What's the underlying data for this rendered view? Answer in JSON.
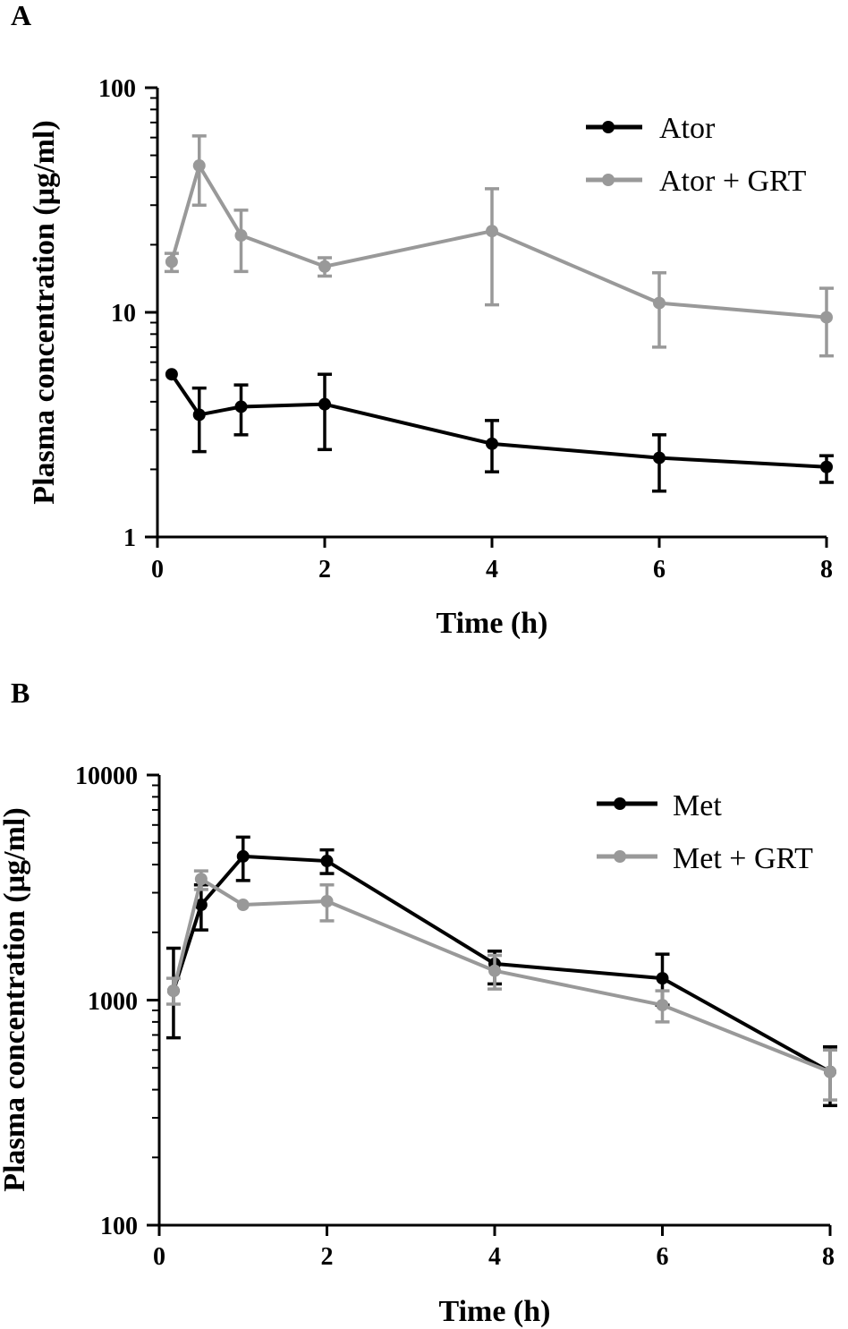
{
  "chart_data": [
    {
      "type": "line",
      "panel_label": "A",
      "xlabel": "Time (h)",
      "ylabel": "Plasma concentration (µg/ml)",
      "yscale": "log",
      "xlim": [
        0,
        8
      ],
      "ylim": [
        1,
        100
      ],
      "xticks": [
        "0",
        "2",
        "4",
        "6",
        "8"
      ],
      "yticks": [
        "1",
        "10",
        "100"
      ],
      "legend_position": "top-right",
      "series": [
        {
          "name": "Ator",
          "color": "#000000",
          "x": [
            0.17,
            0.5,
            1,
            2,
            4,
            6,
            8
          ],
          "values": [
            5.3,
            3.5,
            3.8,
            3.9,
            2.6,
            2.25,
            2.05
          ],
          "err_low": [
            5.3,
            2.4,
            2.85,
            2.45,
            1.95,
            1.6,
            1.75
          ],
          "err_high": [
            5.3,
            4.6,
            4.75,
            5.3,
            3.3,
            2.85,
            2.3
          ]
        },
        {
          "name": "Ator + GRT",
          "color": "#999999",
          "x": [
            0.17,
            0.5,
            1,
            2,
            4,
            6,
            8
          ],
          "values": [
            16.8,
            45,
            22,
            16,
            23,
            11,
            9.5
          ],
          "err_low": [
            15.2,
            30,
            15.2,
            14.5,
            10.8,
            7.0,
            6.4
          ],
          "err_high": [
            18.3,
            61,
            28.5,
            17.5,
            35.5,
            15,
            12.8
          ]
        }
      ]
    },
    {
      "type": "line",
      "panel_label": "B",
      "xlabel": "Time (h)",
      "ylabel": "Plasma concentration (µg/ml)",
      "yscale": "log",
      "xlim": [
        0,
        8
      ],
      "ylim": [
        100,
        10000
      ],
      "xticks": [
        "0",
        "2",
        "4",
        "6",
        "8"
      ],
      "yticks": [
        "100",
        "1000",
        "10000"
      ],
      "legend_position": "top-right",
      "series": [
        {
          "name": "Met",
          "color": "#000000",
          "x": [
            0.17,
            0.5,
            1,
            2,
            4,
            6,
            8
          ],
          "values": [
            1100,
            2650,
            4350,
            4150,
            1450,
            1250,
            480
          ],
          "err_low": [
            680,
            2050,
            3400,
            3650,
            1180,
            950,
            340
          ],
          "err_high": [
            1700,
            3250,
            5300,
            4650,
            1650,
            1600,
            620
          ]
        },
        {
          "name": "Met + GRT",
          "color": "#999999",
          "x": [
            0.17,
            0.5,
            1,
            2,
            4,
            6,
            8
          ],
          "values": [
            1100,
            3450,
            2650,
            2750,
            1350,
            950,
            480
          ],
          "err_low": [
            960,
            3100,
            2650,
            2250,
            1120,
            800,
            360
          ],
          "err_high": [
            1250,
            3750,
            2650,
            3250,
            1580,
            1100,
            600
          ]
        }
      ]
    }
  ]
}
